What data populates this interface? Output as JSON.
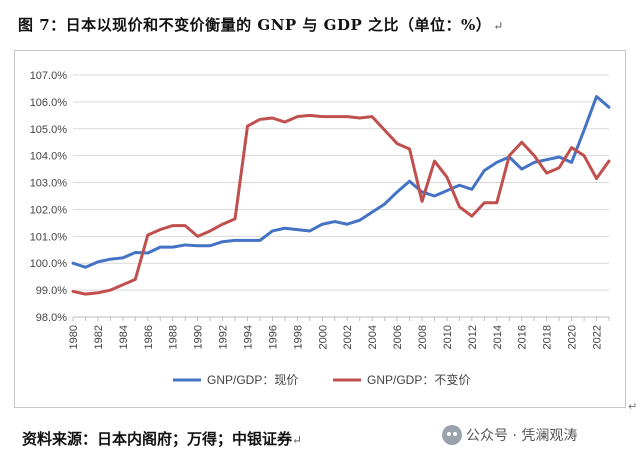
{
  "figure_title": "图 7：日本以现价和不变价衡量的 GNP 与 GDP 之比（单位：%）",
  "paragraph_mark": "↵",
  "source_text": "资料来源：日本内阁府；万得；中银证券",
  "watermark": {
    "icon": "wechat-icon",
    "text": "公众号 · 凭澜观涛"
  },
  "colors": {
    "blue": "#4472C4",
    "red": "#C0504D"
  },
  "chart_data": {
    "type": "line",
    "title": "",
    "xlabel": "",
    "ylabel": "",
    "ylim": [
      98.0,
      107.0
    ],
    "yticks": [
      "98.0%",
      "99.0%",
      "100.0%",
      "101.0%",
      "102.0%",
      "103.0%",
      "104.0%",
      "105.0%",
      "106.0%",
      "107.0%"
    ],
    "xticks": [
      "1980",
      "1982",
      "1984",
      "1986",
      "1988",
      "1990",
      "1992",
      "1994",
      "1996",
      "1998",
      "2000",
      "2002",
      "2004",
      "2006",
      "2008",
      "2010",
      "2012",
      "2014",
      "2016",
      "2018",
      "2020",
      "2022"
    ],
    "legend_position": "bottom",
    "x": [
      1980,
      1981,
      1982,
      1983,
      1984,
      1985,
      1986,
      1987,
      1988,
      1989,
      1990,
      1991,
      1992,
      1993,
      1994,
      1995,
      1996,
      1997,
      1998,
      1999,
      2000,
      2001,
      2002,
      2003,
      2004,
      2005,
      2006,
      2007,
      2008,
      2009,
      2010,
      2011,
      2012,
      2013,
      2014,
      2015,
      2016,
      2017,
      2018,
      2019,
      2020,
      2021,
      2022,
      2023
    ],
    "series": [
      {
        "name": "GNP/GDP：现价",
        "color": "#4472C4",
        "values": [
          100.0,
          99.85,
          100.05,
          100.15,
          100.2,
          100.4,
          100.38,
          100.6,
          100.6,
          100.68,
          100.65,
          100.65,
          100.8,
          100.85,
          100.85,
          100.85,
          101.2,
          101.3,
          101.25,
          101.2,
          101.45,
          101.55,
          101.45,
          101.6,
          101.9,
          102.2,
          102.65,
          103.05,
          102.65,
          102.5,
          102.7,
          102.9,
          102.75,
          103.45,
          103.75,
          103.95,
          103.5,
          103.75,
          103.85,
          103.95,
          103.75,
          104.95,
          106.2,
          105.8
        ]
      },
      {
        "name": "GNP/GDP：不变价",
        "color": "#C0504D",
        "values": [
          98.95,
          98.85,
          98.9,
          99.0,
          99.2,
          99.4,
          101.05,
          101.25,
          101.4,
          101.4,
          101.0,
          101.2,
          101.45,
          101.65,
          105.1,
          105.35,
          105.4,
          105.25,
          105.45,
          105.5,
          105.45,
          105.45,
          105.45,
          105.4,
          105.45,
          104.95,
          104.45,
          104.25,
          102.3,
          103.8,
          103.2,
          102.1,
          101.75,
          102.25,
          102.25,
          104.0,
          104.5,
          104.0,
          103.35,
          103.55,
          104.3,
          104.0,
          103.15,
          103.8
        ]
      }
    ]
  }
}
